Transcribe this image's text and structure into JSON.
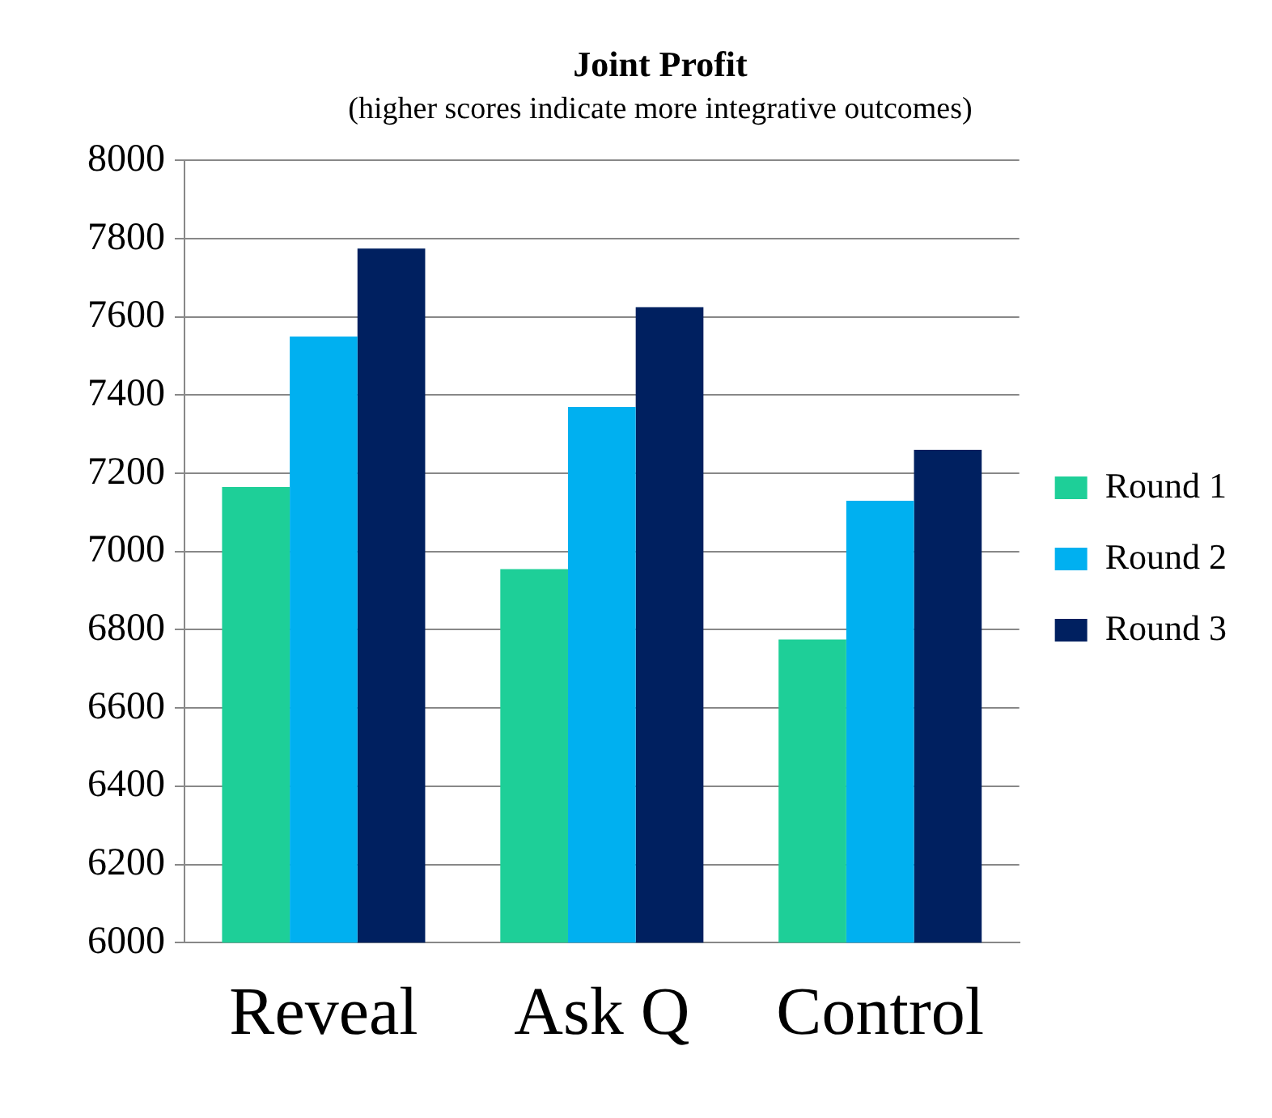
{
  "chart_data": {
    "type": "bar",
    "title": "Joint Profit",
    "subtitle": "(higher scores indicate more integrative outcomes)",
    "categories": [
      "Reveal",
      "Ask Q",
      "Control"
    ],
    "series": [
      {
        "name": "Round 1",
        "color": "#1ecf98",
        "values": [
          7165,
          6955,
          6775
        ]
      },
      {
        "name": "Round 2",
        "color": "#00b0f0",
        "values": [
          7550,
          7370,
          7130
        ]
      },
      {
        "name": "Round 3",
        "color": "#002060",
        "values": [
          7775,
          7625,
          7260
        ]
      }
    ],
    "ylim": [
      6000,
      8000
    ],
    "yticks": [
      6000,
      6200,
      6400,
      6600,
      6800,
      7000,
      7200,
      7400,
      7600,
      7800,
      8000
    ],
    "grid": "y",
    "legend": "right"
  }
}
